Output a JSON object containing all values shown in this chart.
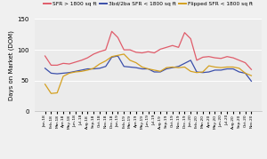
{
  "title": "",
  "ylabel": "Days on Market (DOM)",
  "legend": [
    "SFR > 1800 sq ft",
    "3bd/2ba SFR < 1800 sq ft",
    "Flipped SFR < 1800 sq ft"
  ],
  "legend_colors": [
    "#e05c6a",
    "#3b4faa",
    "#d4a020"
  ],
  "xlabels": [
    "Jan-18",
    "Feb-18",
    "Mar-18",
    "Apr-18",
    "May-18",
    "Jun-18",
    "Jul-18",
    "Aug-18",
    "Sep-18",
    "Oct-18",
    "Nov-18",
    "Dec-18",
    "Jan-19",
    "Feb-19",
    "Mar-19",
    "Apr-19",
    "May-19",
    "Jun-19",
    "Jul-19",
    "Aug-19",
    "Sep-19",
    "Oct-19",
    "Nov-19",
    "Dec-19",
    "Jan-20",
    "Feb-20",
    "Mar-20",
    "Apr-20",
    "May-20",
    "Jun-20",
    "Jul-20",
    "Aug-20",
    "Sep-20",
    "Oct-20",
    "Nov-20"
  ],
  "sfr_large": [
    90,
    75,
    75,
    78,
    77,
    80,
    83,
    87,
    93,
    97,
    100,
    130,
    120,
    100,
    100,
    96,
    95,
    97,
    95,
    101,
    104,
    107,
    104,
    128,
    118,
    83,
    88,
    89,
    87,
    86,
    89,
    87,
    83,
    79,
    68
  ],
  "sfr_small": [
    70,
    62,
    61,
    62,
    63,
    65,
    67,
    69,
    69,
    70,
    73,
    88,
    90,
    73,
    72,
    71,
    69,
    69,
    64,
    64,
    69,
    71,
    73,
    78,
    83,
    64,
    63,
    64,
    67,
    67,
    69,
    69,
    64,
    62,
    49
  ],
  "flipped": [
    44,
    29,
    30,
    57,
    62,
    64,
    65,
    67,
    70,
    77,
    82,
    89,
    91,
    93,
    83,
    79,
    72,
    69,
    67,
    65,
    71,
    72,
    71,
    72,
    65,
    63,
    64,
    74,
    72,
    71,
    72,
    72,
    70,
    62,
    58
  ],
  "ylim": [
    0,
    150
  ],
  "yticks": [
    0,
    50,
    100,
    150
  ],
  "background_color": "#f0f0f0",
  "plot_bg": "#ebebeb",
  "grid_color": "#ffffff"
}
